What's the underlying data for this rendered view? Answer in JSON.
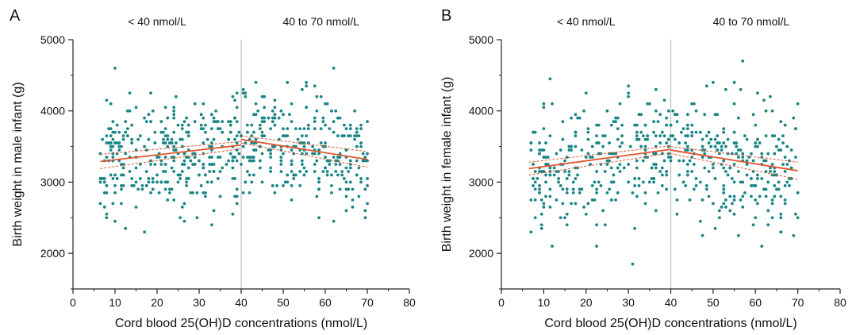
{
  "colors": {
    "points": "#1a8585",
    "fit": "#e0542e",
    "divider": "#bdbdbd",
    "axis": "#222222"
  },
  "chart_data": [
    {
      "type": "scatter",
      "panel": "A",
      "region_labels": [
        "< 40 nmol/L",
        "40 to 70 nmol/L"
      ],
      "xlabel": "Cord blood 25(OH)D concentrations (nmol/L)",
      "ylabel": "Birth weight in male infant (g)",
      "xlim": [
        0,
        80
      ],
      "ylim": [
        1500,
        5000
      ],
      "xticks": [
        0,
        10,
        20,
        30,
        40,
        50,
        60,
        70,
        80
      ],
      "yticks": [
        2000,
        3000,
        4000,
        5000
      ],
      "divider_x": 40,
      "grid": false,
      "legend": "none",
      "fits": [
        {
          "x": [
            6.5,
            40
          ],
          "fit": [
            3290,
            3520
          ],
          "lower": [
            3190,
            3470
          ],
          "upper": [
            3390,
            3570
          ]
        },
        {
          "x": [
            40,
            70
          ],
          "fit": [
            3600,
            3320
          ],
          "lower": [
            3550,
            3210
          ],
          "upper": [
            3650,
            3430
          ]
        }
      ],
      "point_seed": 11
    },
    {
      "type": "scatter",
      "panel": "B",
      "region_labels": [
        "< 40 nmol/L",
        "40 to 70 nmol/L"
      ],
      "xlabel": "Cord blood 25(OH)D concentrations (nmol/L)",
      "ylabel": "Birth weight in female infant (g)",
      "xlim": [
        0,
        80
      ],
      "ylim": [
        1500,
        5000
      ],
      "xticks": [
        0,
        10,
        20,
        30,
        40,
        50,
        60,
        70,
        80
      ],
      "yticks": [
        2000,
        3000,
        4000,
        5000
      ],
      "divider_x": 40,
      "grid": false,
      "legend": "none",
      "fits": [
        {
          "x": [
            6.5,
            40
          ],
          "fit": [
            3190,
            3460
          ],
          "lower": [
            3100,
            3410
          ],
          "upper": [
            3280,
            3510
          ]
        },
        {
          "x": [
            40,
            70
          ],
          "fit": [
            3450,
            3160
          ],
          "lower": [
            3400,
            3040
          ],
          "upper": [
            3500,
            3280
          ]
        }
      ],
      "point_seed": 23
    }
  ]
}
